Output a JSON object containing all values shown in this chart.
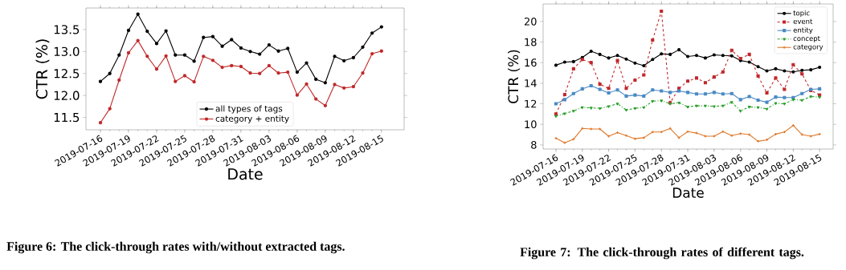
{
  "chart_data": [
    {
      "type": "line",
      "xlabel": "Date",
      "ylabel": "CTR (%)",
      "annotations": [
        "Figure 6: The click-through rates with/without extracted tags."
      ],
      "x": [
        "2019-07-16",
        "2019-07-17",
        "2019-07-18",
        "2019-07-19",
        "2019-07-20",
        "2019-07-21",
        "2019-07-22",
        "2019-07-23",
        "2019-07-24",
        "2019-07-25",
        "2019-07-26",
        "2019-07-27",
        "2019-07-28",
        "2019-07-29",
        "2019-07-30",
        "2019-07-31",
        "2019-08-01",
        "2019-08-02",
        "2019-08-03",
        "2019-08-04",
        "2019-08-05",
        "2019-08-06",
        "2019-08-07",
        "2019-08-08",
        "2019-08-09",
        "2019-08-10",
        "2019-08-11",
        "2019-08-12",
        "2019-08-13",
        "2019-08-14",
        "2019-08-15"
      ],
      "xlim": [
        "2019-07-14T11:00",
        "2019-08-17T10:00"
      ],
      "xticks": [
        "2019-07-16",
        "2019-07-19",
        "2019-07-22",
        "2019-07-25",
        "2019-07-28",
        "2019-07-31",
        "2019-08-03",
        "2019-08-06",
        "2019-08-09",
        "2019-08-12",
        "2019-08-15"
      ],
      "ylim": [
        11.22,
        13.99
      ],
      "yticks": [
        11.5,
        {
          "value": 12,
          "label": "12.0"
        },
        12.5,
        {
          "value": 13,
          "label": "13.0"
        },
        13.5
      ],
      "legend": "bottom",
      "marker": "circle",
      "line_style": "solid",
      "series": [
        {
          "name": "all types of tags",
          "color": "#000000",
          "values": [
            12.32,
            12.5,
            12.92,
            13.48,
            13.85,
            13.46,
            13.18,
            13.47,
            12.92,
            12.92,
            12.78,
            13.32,
            13.34,
            13.12,
            13.27,
            13.08,
            13.0,
            12.94,
            13.15,
            13.01,
            13.07,
            12.53,
            12.74,
            12.37,
            12.29,
            12.89,
            12.79,
            12.86,
            13.1,
            13.42,
            13.56
          ]
        },
        {
          "name": "category + entity",
          "color": "#c0282a",
          "values": [
            11.38,
            11.7,
            12.35,
            12.97,
            13.25,
            12.89,
            12.6,
            12.9,
            12.32,
            12.45,
            12.31,
            12.89,
            12.8,
            12.64,
            12.68,
            12.66,
            12.51,
            12.5,
            12.68,
            12.51,
            12.53,
            12.01,
            12.26,
            11.92,
            11.77,
            12.25,
            12.17,
            12.2,
            12.51,
            12.95,
            13.01
          ]
        }
      ]
    },
    {
      "type": "line",
      "xlabel": "Date",
      "ylabel": "CTR (%)",
      "annotations": [
        "Figure 7: The click-through rates of different tags."
      ],
      "x": [
        "2019-07-16",
        "2019-07-17",
        "2019-07-18",
        "2019-07-19",
        "2019-07-20",
        "2019-07-21",
        "2019-07-22",
        "2019-07-23",
        "2019-07-24",
        "2019-07-25",
        "2019-07-26",
        "2019-07-27",
        "2019-07-28",
        "2019-07-29",
        "2019-07-30",
        "2019-07-31",
        "2019-08-01",
        "2019-08-02",
        "2019-08-03",
        "2019-08-04",
        "2019-08-05",
        "2019-08-06",
        "2019-08-07",
        "2019-08-08",
        "2019-08-09",
        "2019-08-10",
        "2019-08-11",
        "2019-08-12",
        "2019-08-13",
        "2019-08-14",
        "2019-08-15"
      ],
      "xlim": [
        "2019-07-14T13:00",
        "2019-08-16T13:00"
      ],
      "xticks": [
        "2019-07-16",
        "2019-07-19",
        "2019-07-22",
        "2019-07-25",
        "2019-07-28",
        "2019-07-31",
        "2019-08-03",
        "2019-08-06",
        "2019-08-09",
        "2019-08-12",
        "2019-08-15"
      ],
      "ylim": [
        7.6,
        21.7
      ],
      "yticks": [
        8,
        10,
        12,
        14,
        16,
        18,
        20
      ],
      "legend": "top right",
      "series": [
        {
          "name": "topic",
          "color": "#000000",
          "marker": "circle",
          "line_style": "solid",
          "values": [
            15.75,
            16.05,
            16.1,
            16.5,
            17.1,
            16.8,
            16.45,
            16.7,
            16.35,
            15.95,
            15.7,
            16.3,
            16.85,
            16.8,
            17.25,
            16.6,
            16.7,
            16.45,
            16.75,
            16.7,
            16.65,
            16.2,
            16.05,
            15.6,
            15.2,
            15.4,
            15.2,
            15.1,
            15.25,
            15.3,
            15.55
          ]
        },
        {
          "name": "event",
          "color": "#c0282a",
          "marker": "square",
          "line_style": "dashed",
          "values": [
            11.0,
            12.9,
            15.4,
            16.3,
            16.0,
            13.9,
            13.5,
            16.2,
            13.5,
            14.3,
            14.8,
            18.2,
            21.0,
            12.1,
            13.5,
            14.2,
            14.5,
            14.05,
            14.6,
            15.1,
            17.2,
            16.4,
            16.8,
            14.7,
            13.05,
            14.5,
            13.4,
            15.8,
            14.9,
            13.3,
            12.85
          ]
        },
        {
          "name": "entity",
          "color": "#4a8ac4",
          "marker": "square",
          "line_style": "solid",
          "values": [
            12.0,
            12.4,
            13.0,
            13.45,
            13.75,
            13.4,
            13.05,
            13.35,
            12.75,
            12.85,
            12.75,
            13.35,
            13.25,
            13.1,
            13.25,
            13.1,
            12.95,
            12.95,
            13.1,
            12.95,
            13.0,
            12.4,
            12.7,
            12.35,
            12.15,
            12.65,
            12.6,
            12.6,
            13.0,
            13.4,
            13.45
          ]
        },
        {
          "name": "concept",
          "color": "#2ca02c",
          "marker": "triangle",
          "line_style": "dashdot",
          "values": [
            10.8,
            11.05,
            11.3,
            11.65,
            11.6,
            11.55,
            11.75,
            12.0,
            11.4,
            11.55,
            11.65,
            12.25,
            12.3,
            12.0,
            12.1,
            11.7,
            11.8,
            11.8,
            11.75,
            11.8,
            12.15,
            11.3,
            11.7,
            11.65,
            11.5,
            12.05,
            12.0,
            12.4,
            12.35,
            12.7,
            12.65
          ]
        },
        {
          "name": "category",
          "color": "#e0782a",
          "marker": "cross",
          "line_style": "solid",
          "values": [
            8.65,
            8.2,
            8.55,
            9.6,
            9.55,
            9.55,
            8.85,
            9.2,
            8.9,
            8.6,
            8.7,
            9.25,
            9.25,
            9.6,
            8.7,
            9.3,
            9.15,
            8.85,
            8.85,
            9.3,
            8.9,
            9.1,
            9.0,
            8.35,
            8.5,
            9.05,
            9.25,
            9.9,
            9.0,
            8.85,
            9.05
          ]
        }
      ]
    }
  ]
}
